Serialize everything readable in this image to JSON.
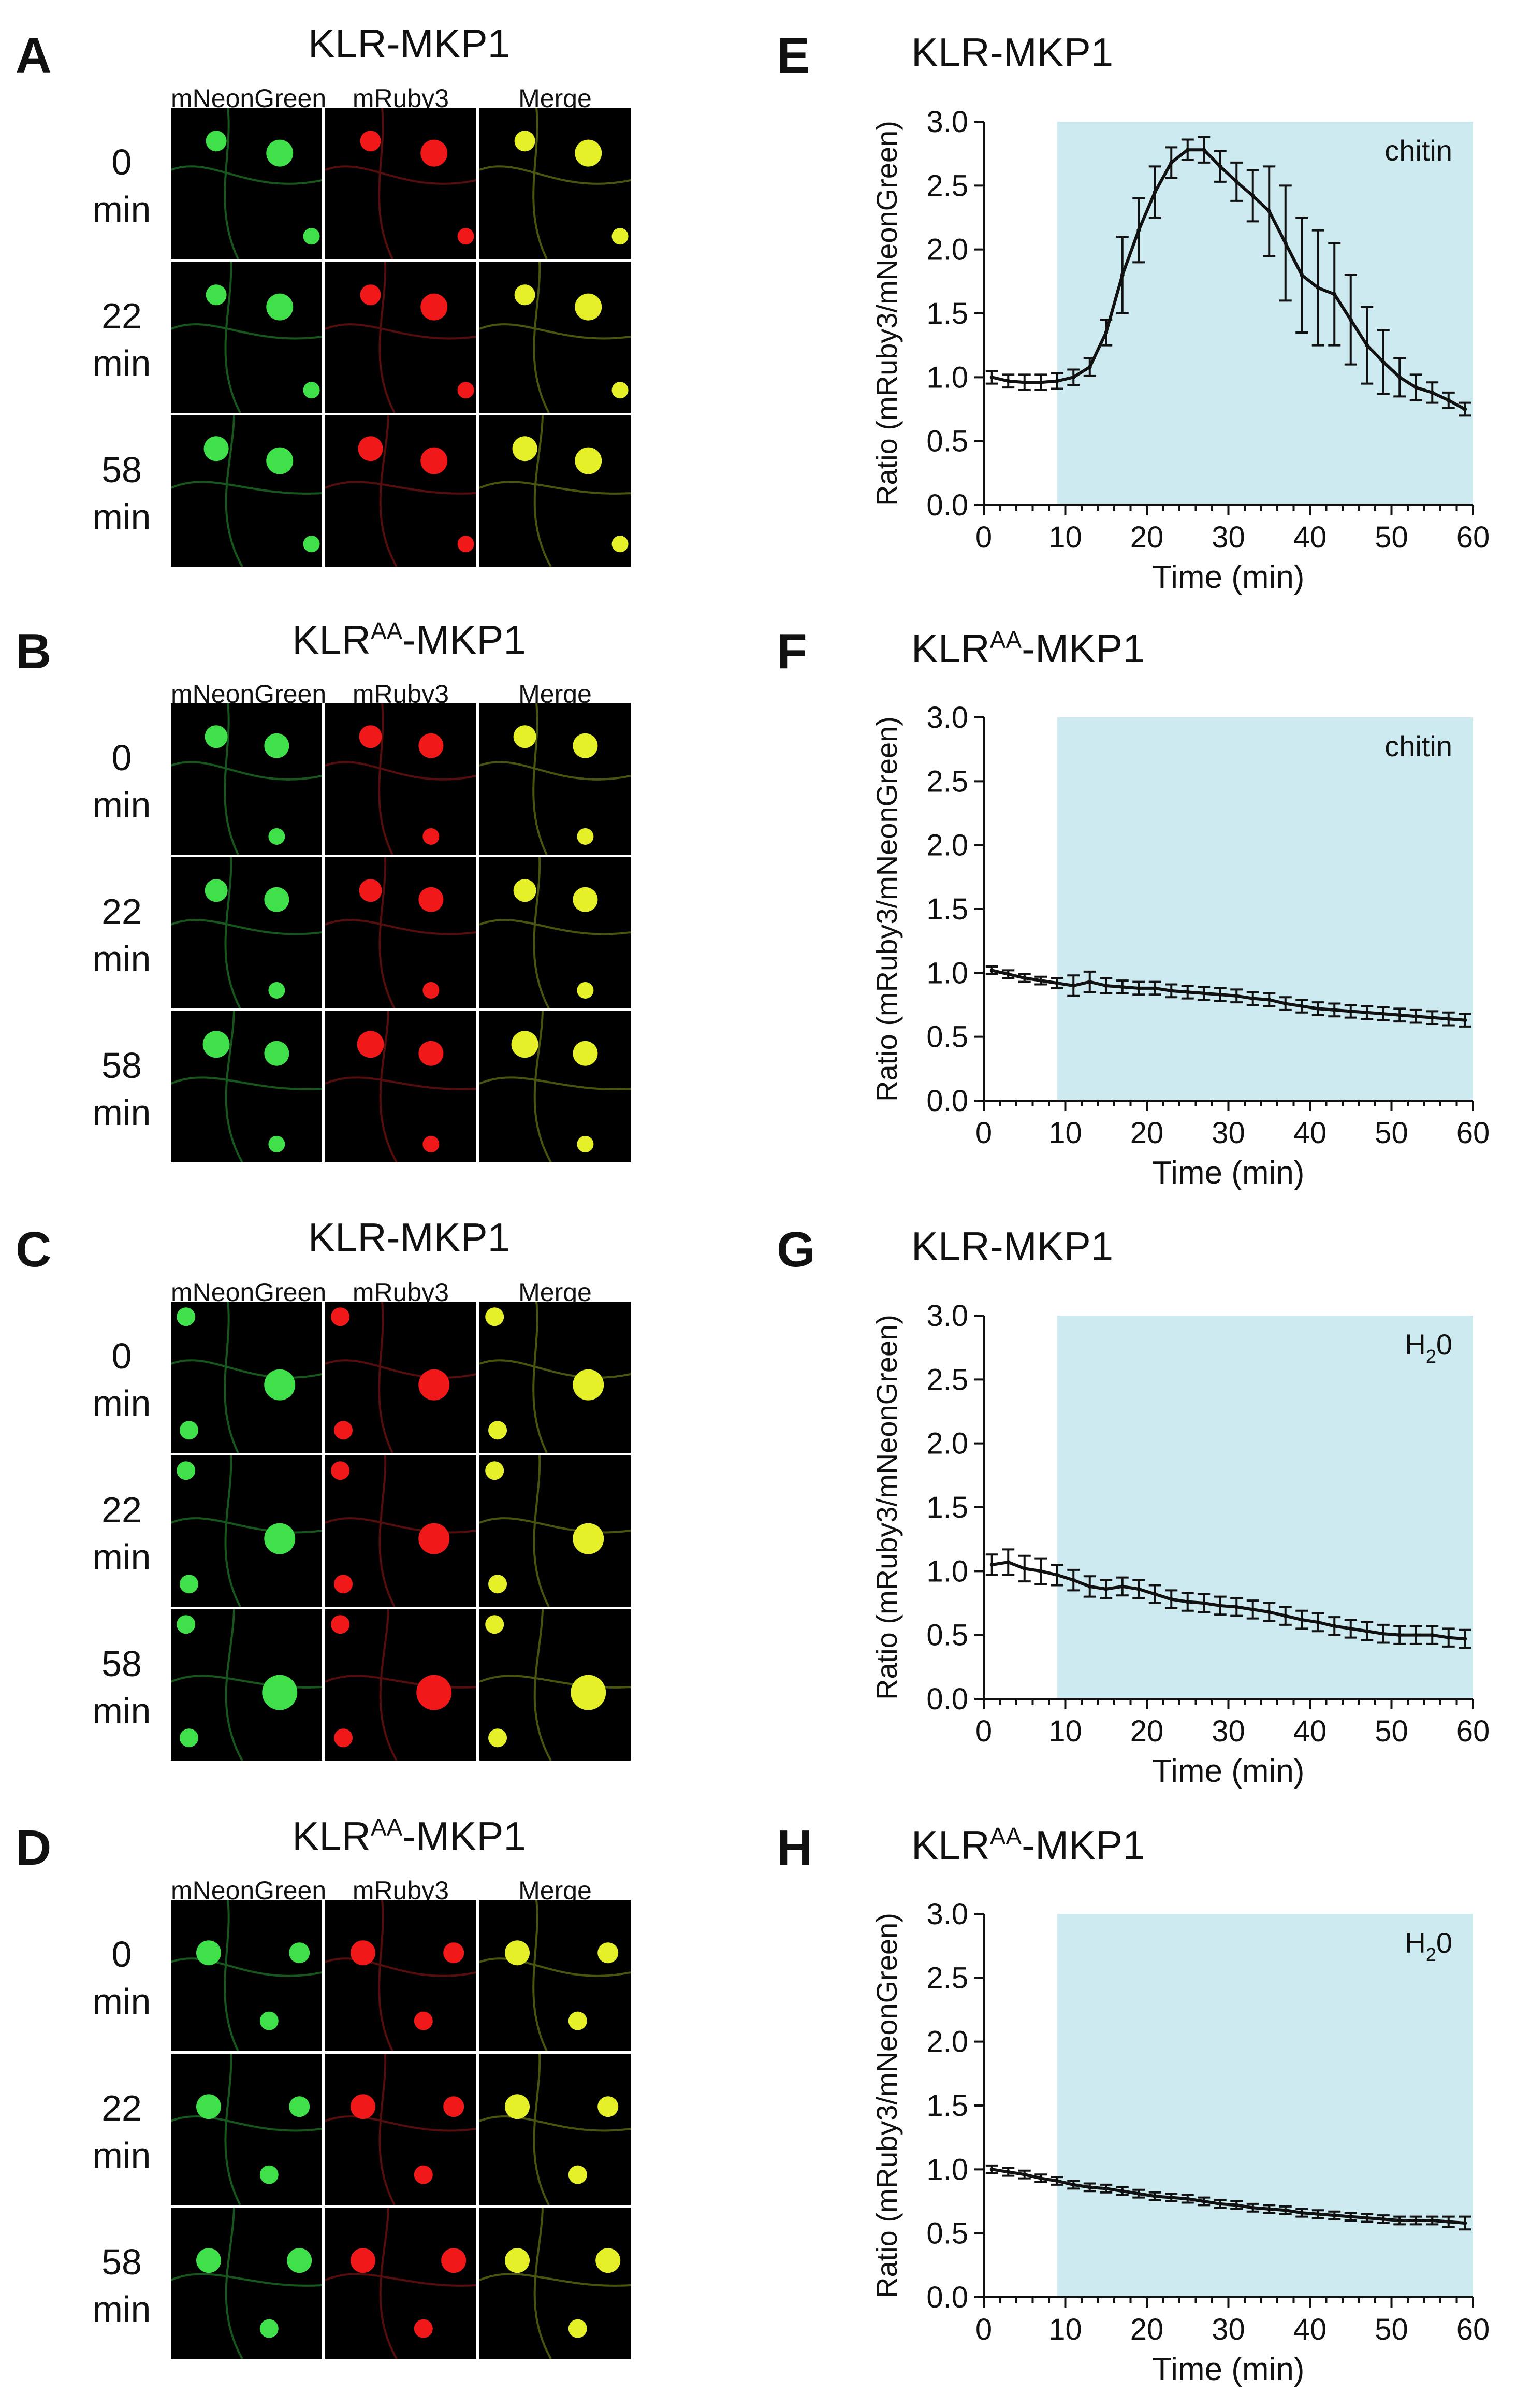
{
  "figure": {
    "micro_panels": [
      {
        "letter": "A",
        "title_base": "KLR",
        "title_sup": "",
        "title_end": "-MKP1",
        "columns": [
          "mNeonGreen",
          "mRuby3",
          "Merge"
        ],
        "rows": [
          {
            "time": "0",
            "unit": "min"
          },
          {
            "time": "22",
            "unit": "min"
          },
          {
            "time": "58",
            "unit": "min"
          }
        ]
      },
      {
        "letter": "B",
        "title_base": "KLR",
        "title_sup": "AA",
        "title_end": "-MKP1",
        "columns": [
          "mNeonGreen",
          "mRuby3",
          "Merge"
        ],
        "rows": [
          {
            "time": "0",
            "unit": "min"
          },
          {
            "time": "22",
            "unit": "min"
          },
          {
            "time": "58",
            "unit": "min"
          }
        ]
      },
      {
        "letter": "C",
        "title_base": "KLR",
        "title_sup": "",
        "title_end": "-MKP1",
        "columns": [
          "mNeonGreen",
          "mRuby3",
          "Merge"
        ],
        "rows": [
          {
            "time": "0",
            "unit": "min"
          },
          {
            "time": "22",
            "unit": "min"
          },
          {
            "time": "58",
            "unit": "min"
          }
        ]
      },
      {
        "letter": "D",
        "title_base": "KLR",
        "title_sup": "AA",
        "title_end": "-MKP1",
        "columns": [
          "mNeonGreen",
          "mRuby3",
          "Merge"
        ],
        "rows": [
          {
            "time": "0",
            "unit": "min"
          },
          {
            "time": "22",
            "unit": "min"
          },
          {
            "time": "58",
            "unit": "min"
          }
        ]
      }
    ],
    "colors": {
      "treatment_shade": "#cdeaf0",
      "green_channel": "#3fe04a",
      "red_channel": "#f01818",
      "merge_channel": "#e6f028",
      "line": "#111111"
    }
  },
  "chart_data": [
    {
      "letter": "E",
      "type": "line",
      "title_base": "KLR",
      "title_sup": "",
      "title_end": "-MKP1",
      "annotation": "chitin",
      "annotation_sub": "",
      "annotation_end": "",
      "xlabel": "Time (min)",
      "ylabel": "Ratio (mRuby3/mNeonGreen)",
      "xlim": [
        0,
        60
      ],
      "ylim": [
        0,
        3.0
      ],
      "xticks": [
        "0",
        "10",
        "20",
        "30",
        "40",
        "50",
        "60"
      ],
      "yticks": [
        "0.0",
        "0.5",
        "1.0",
        "1.5",
        "2.0",
        "2.5",
        "3.0"
      ],
      "shaded_region": [
        9,
        60
      ],
      "x": [
        1,
        3,
        5,
        7,
        9,
        11,
        13,
        15,
        17,
        19,
        21,
        23,
        25,
        27,
        29,
        31,
        33,
        35,
        37,
        39,
        41,
        43,
        45,
        47,
        49,
        51,
        53,
        55,
        57,
        59
      ],
      "y": [
        1.0,
        0.97,
        0.96,
        0.96,
        0.97,
        1.0,
        1.08,
        1.35,
        1.8,
        2.15,
        2.45,
        2.68,
        2.78,
        2.78,
        2.65,
        2.53,
        2.42,
        2.3,
        2.05,
        1.8,
        1.7,
        1.65,
        1.45,
        1.25,
        1.12,
        1.0,
        0.92,
        0.88,
        0.82,
        0.75
      ],
      "err": [
        0.05,
        0.05,
        0.06,
        0.06,
        0.06,
        0.06,
        0.07,
        0.1,
        0.3,
        0.25,
        0.2,
        0.12,
        0.08,
        0.1,
        0.12,
        0.15,
        0.2,
        0.35,
        0.45,
        0.45,
        0.45,
        0.4,
        0.35,
        0.3,
        0.25,
        0.15,
        0.1,
        0.08,
        0.06,
        0.05
      ]
    },
    {
      "letter": "F",
      "type": "line",
      "title_base": "KLR",
      "title_sup": "AA",
      "title_end": "-MKP1",
      "annotation": "chitin",
      "annotation_sub": "",
      "annotation_end": "",
      "xlabel": "Time (min)",
      "ylabel": "Ratio (mRuby3/mNeonGreen)",
      "xlim": [
        0,
        60
      ],
      "ylim": [
        0,
        3.0
      ],
      "xticks": [
        "0",
        "10",
        "20",
        "30",
        "40",
        "50",
        "60"
      ],
      "yticks": [
        "0.0",
        "0.5",
        "1.0",
        "1.5",
        "2.0",
        "2.5",
        "3.0"
      ],
      "shaded_region": [
        9,
        60
      ],
      "x": [
        1,
        3,
        5,
        7,
        9,
        11,
        13,
        15,
        17,
        19,
        21,
        23,
        25,
        27,
        29,
        31,
        33,
        35,
        37,
        39,
        41,
        43,
        45,
        47,
        49,
        51,
        53,
        55,
        57,
        59
      ],
      "y": [
        1.02,
        0.99,
        0.96,
        0.94,
        0.92,
        0.9,
        0.93,
        0.9,
        0.89,
        0.88,
        0.88,
        0.86,
        0.85,
        0.84,
        0.83,
        0.82,
        0.8,
        0.79,
        0.76,
        0.74,
        0.72,
        0.71,
        0.7,
        0.69,
        0.68,
        0.67,
        0.66,
        0.65,
        0.64,
        0.63
      ],
      "err": [
        0.03,
        0.03,
        0.03,
        0.03,
        0.04,
        0.08,
        0.08,
        0.06,
        0.05,
        0.05,
        0.05,
        0.05,
        0.05,
        0.05,
        0.05,
        0.05,
        0.05,
        0.05,
        0.05,
        0.05,
        0.05,
        0.05,
        0.05,
        0.05,
        0.05,
        0.05,
        0.05,
        0.05,
        0.05,
        0.05
      ]
    },
    {
      "letter": "G",
      "type": "line",
      "title_base": "KLR",
      "title_sup": "",
      "title_end": "-MKP1",
      "annotation": "H",
      "annotation_sub": "2",
      "annotation_end": "0",
      "xlabel": "Time (min)",
      "ylabel": "Ratio (mRuby3/mNeonGreen)",
      "xlim": [
        0,
        60
      ],
      "ylim": [
        0,
        3.0
      ],
      "xticks": [
        "0",
        "10",
        "20",
        "30",
        "40",
        "50",
        "60"
      ],
      "yticks": [
        "0.0",
        "0.5",
        "1.0",
        "1.5",
        "2.0",
        "2.5",
        "3.0"
      ],
      "shaded_region": [
        9,
        60
      ],
      "x": [
        1,
        3,
        5,
        7,
        9,
        11,
        13,
        15,
        17,
        19,
        21,
        23,
        25,
        27,
        29,
        31,
        33,
        35,
        37,
        39,
        41,
        43,
        45,
        47,
        49,
        51,
        53,
        55,
        57,
        59
      ],
      "y": [
        1.05,
        1.07,
        1.02,
        1.0,
        0.97,
        0.93,
        0.88,
        0.86,
        0.88,
        0.86,
        0.82,
        0.78,
        0.76,
        0.75,
        0.73,
        0.72,
        0.7,
        0.68,
        0.65,
        0.62,
        0.6,
        0.57,
        0.55,
        0.53,
        0.51,
        0.5,
        0.5,
        0.5,
        0.48,
        0.47
      ],
      "err": [
        0.08,
        0.1,
        0.1,
        0.1,
        0.08,
        0.08,
        0.08,
        0.07,
        0.07,
        0.07,
        0.07,
        0.07,
        0.07,
        0.07,
        0.07,
        0.07,
        0.07,
        0.07,
        0.07,
        0.07,
        0.07,
        0.07,
        0.07,
        0.07,
        0.07,
        0.07,
        0.07,
        0.07,
        0.07,
        0.07
      ]
    },
    {
      "letter": "H",
      "type": "line",
      "title_base": "KLR",
      "title_sup": "AA",
      "title_end": "-MKP1",
      "annotation": "H",
      "annotation_sub": "2",
      "annotation_end": "0",
      "xlabel": "Time (min)",
      "ylabel": "Ratio (mRuby3/mNeonGreen)",
      "xlim": [
        0,
        60
      ],
      "ylim": [
        0,
        3.0
      ],
      "xticks": [
        "0",
        "10",
        "20",
        "30",
        "40",
        "50",
        "60"
      ],
      "yticks": [
        "0.0",
        "0.5",
        "1.0",
        "1.5",
        "2.0",
        "2.5",
        "3.0"
      ],
      "shaded_region": [
        9,
        60
      ],
      "x": [
        1,
        3,
        5,
        7,
        9,
        11,
        13,
        15,
        17,
        19,
        21,
        23,
        25,
        27,
        29,
        31,
        33,
        35,
        37,
        39,
        41,
        43,
        45,
        47,
        49,
        51,
        53,
        55,
        57,
        59
      ],
      "y": [
        1.0,
        0.98,
        0.96,
        0.93,
        0.91,
        0.88,
        0.86,
        0.85,
        0.83,
        0.81,
        0.79,
        0.78,
        0.77,
        0.75,
        0.73,
        0.72,
        0.7,
        0.69,
        0.68,
        0.66,
        0.65,
        0.64,
        0.63,
        0.62,
        0.61,
        0.6,
        0.6,
        0.6,
        0.59,
        0.58
      ],
      "err": [
        0.03,
        0.03,
        0.03,
        0.03,
        0.03,
        0.03,
        0.03,
        0.03,
        0.03,
        0.03,
        0.03,
        0.03,
        0.03,
        0.03,
        0.03,
        0.03,
        0.03,
        0.03,
        0.03,
        0.03,
        0.03,
        0.03,
        0.03,
        0.03,
        0.03,
        0.03,
        0.03,
        0.03,
        0.04,
        0.05
      ]
    }
  ]
}
